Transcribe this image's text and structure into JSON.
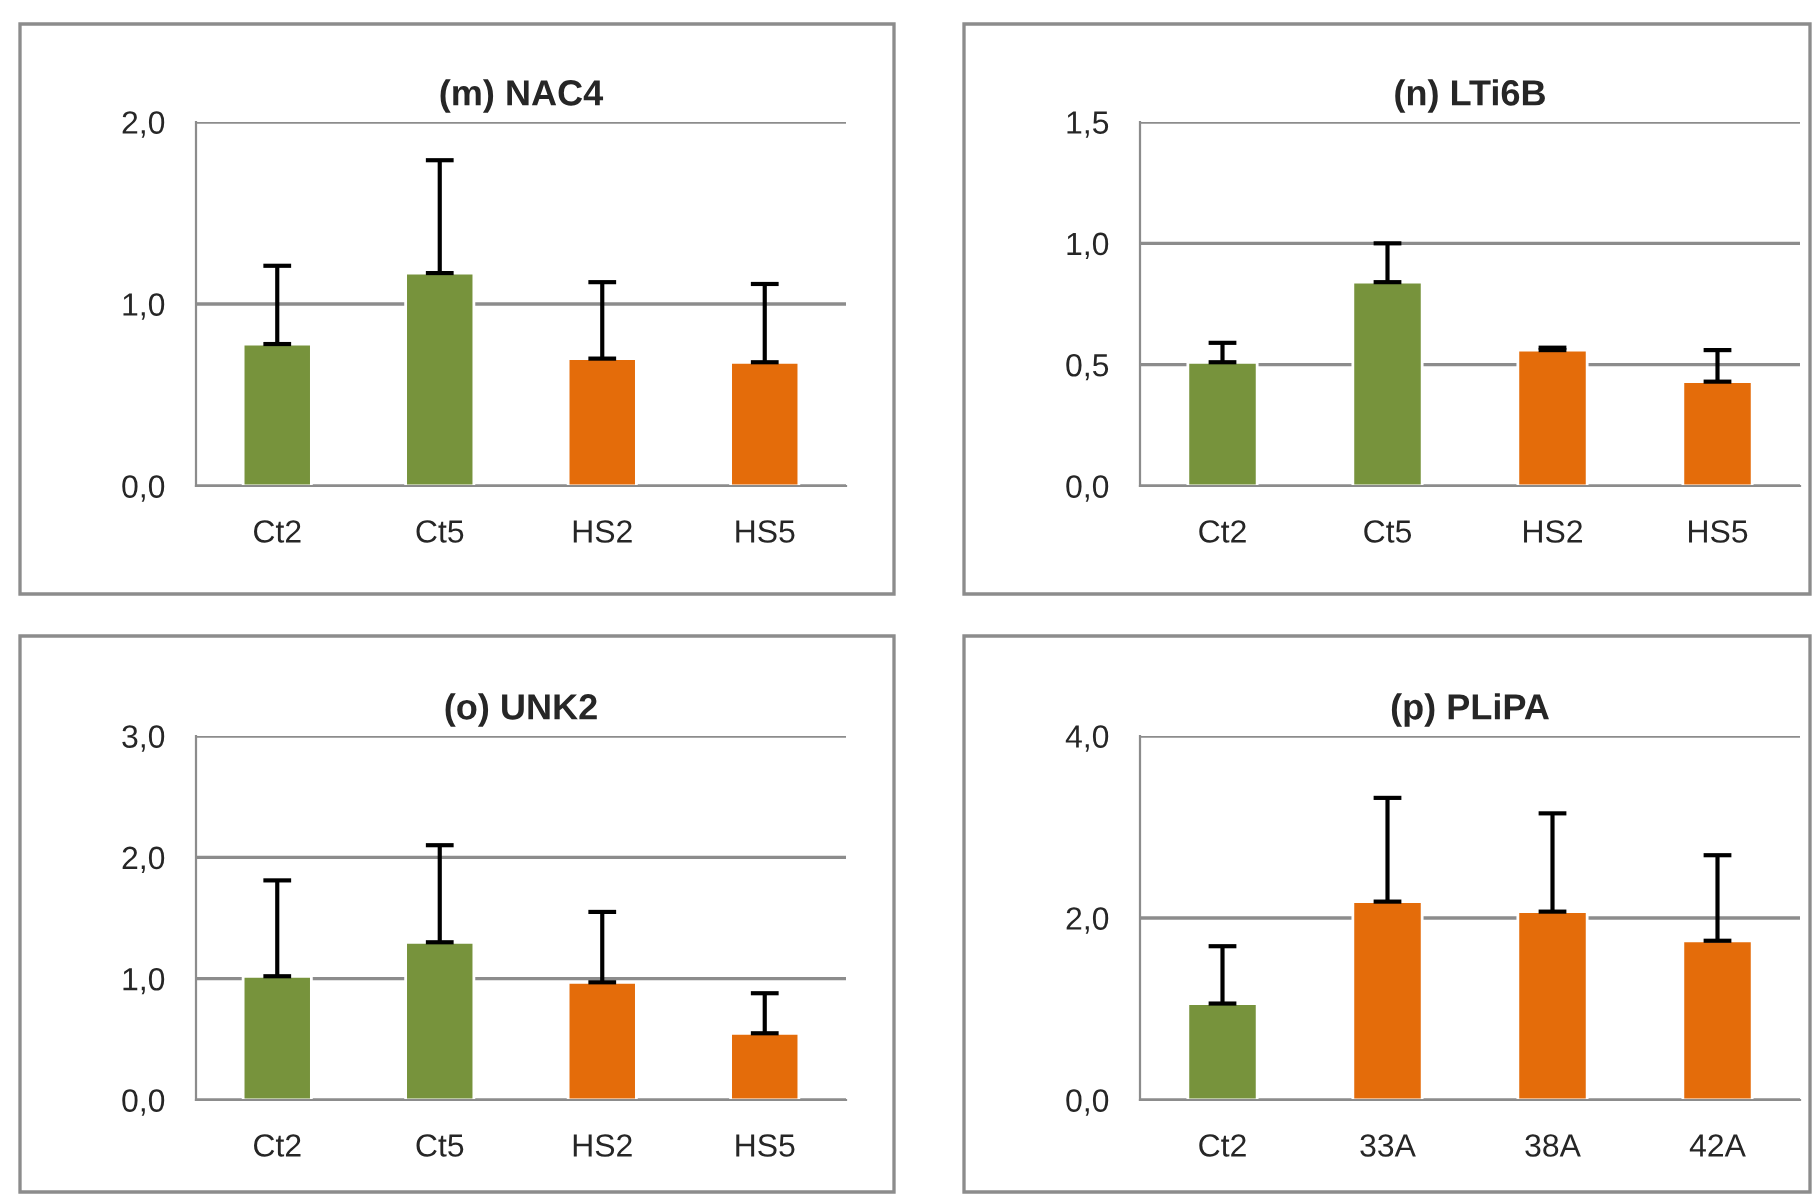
{
  "chart_data": [
    {
      "type": "bar",
      "title": "(m) NAC4",
      "categories": [
        "Ct2",
        "Ct5",
        "HS2",
        "HS5"
      ],
      "values": [
        0.78,
        1.17,
        0.7,
        0.68
      ],
      "colors": [
        "#77933c",
        "#77933c",
        "#e46c0a",
        "#e46c0a"
      ],
      "errors": [
        [
          0.78,
          1.21
        ],
        [
          1.17,
          1.79
        ],
        [
          0.7,
          1.12
        ],
        [
          0.68,
          1.11
        ]
      ],
      "ylim": [
        0,
        2
      ],
      "yticks": [
        {
          "value": 0,
          "label": "0,0"
        },
        {
          "value": 1,
          "label": "1,0"
        },
        {
          "value": 2,
          "label": "2,0"
        }
      ],
      "grid": "y",
      "legend": false
    },
    {
      "type": "bar",
      "title": "(n) LTi6B",
      "categories": [
        "Ct2",
        "Ct5",
        "HS2",
        "HS5"
      ],
      "values": [
        0.51,
        0.84,
        0.56,
        0.43
      ],
      "colors": [
        "#77933c",
        "#77933c",
        "#e46c0a",
        "#e46c0a"
      ],
      "errors": [
        [
          0.51,
          0.59
        ],
        [
          0.84,
          1.0
        ],
        [
          0.56,
          0.57
        ],
        [
          0.43,
          0.56
        ]
      ],
      "ylim": [
        0,
        1.5
      ],
      "yticks": [
        {
          "value": 0,
          "label": "0,0"
        },
        {
          "value": 0.5,
          "label": "0,5"
        },
        {
          "value": 1,
          "label": "1,0"
        },
        {
          "value": 1.5,
          "label": "1,5"
        }
      ],
      "grid": "y",
      "legend": false
    },
    {
      "type": "bar",
      "title": "(o) UNK2",
      "categories": [
        "Ct2",
        "Ct5",
        "HS2",
        "HS5"
      ],
      "values": [
        1.02,
        1.3,
        0.97,
        0.55
      ],
      "colors": [
        "#77933c",
        "#77933c",
        "#e46c0a",
        "#e46c0a"
      ],
      "errors": [
        [
          1.02,
          1.81
        ],
        [
          1.3,
          2.1
        ],
        [
          0.97,
          1.55
        ],
        [
          0.55,
          0.88
        ]
      ],
      "ylim": [
        0,
        3
      ],
      "yticks": [
        {
          "value": 0,
          "label": "0,0"
        },
        {
          "value": 1,
          "label": "1,0"
        },
        {
          "value": 2,
          "label": "2,0"
        },
        {
          "value": 3,
          "label": "3,0"
        }
      ],
      "grid": "y",
      "legend": false
    },
    {
      "type": "bar",
      "title": "(p) PLiPA",
      "categories": [
        "Ct2",
        "33A",
        "38A",
        "42A"
      ],
      "values": [
        1.06,
        2.18,
        2.07,
        1.75
      ],
      "colors": [
        "#77933c",
        "#e46c0a",
        "#e46c0a",
        "#e46c0a"
      ],
      "errors": [
        [
          1.06,
          1.69
        ],
        [
          2.18,
          3.32
        ],
        [
          2.07,
          3.15
        ],
        [
          1.75,
          2.69
        ]
      ],
      "ylim": [
        0,
        4
      ],
      "yticks": [
        {
          "value": 0,
          "label": "0,0"
        },
        {
          "value": 2,
          "label": "2,0"
        },
        {
          "value": 4,
          "label": "4,0"
        }
      ],
      "grid": "y",
      "legend": false
    }
  ]
}
